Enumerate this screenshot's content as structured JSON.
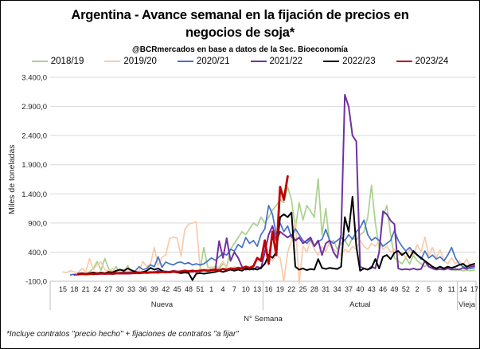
{
  "footnote": "*Incluye contratos \"precio hecho\" + fijaciones de contratos \"a fijar\"",
  "chart_data": {
    "type": "line",
    "title": "Argentina - Avance semanal en la fijación de precios en negocios de soja*",
    "subtitle": "@BCRmercados en base a datos de la Sec. Bioeconomía",
    "ylabel": "Miles de toneladas",
    "xlabel": "N° Semana",
    "ylim": [
      -100,
      3400
    ],
    "yticks": [
      3400,
      2900,
      2400,
      1900,
      1400,
      900,
      400,
      -100
    ],
    "ytick_labels": [
      "3.400,0",
      "2.900,0",
      "2.400,0",
      "1.900,0",
      "1.400,0",
      "900,0",
      "400,0",
      "-100,0"
    ],
    "x_tick_labels": [
      "15",
      "18",
      "21",
      "24",
      "27",
      "30",
      "33",
      "36",
      "39",
      "42",
      "45",
      "48",
      "51",
      "1",
      "4",
      "7",
      "10",
      "13",
      "16",
      "19",
      "22",
      "25",
      "28",
      "31",
      "34",
      "37",
      "40",
      "43",
      "46",
      "49",
      "52",
      "2",
      "5",
      "8",
      "11",
      "14",
      "17"
    ],
    "x_tick_every": 3,
    "sections": [
      {
        "label": "Nueva",
        "start": 0,
        "end": 52
      },
      {
        "label": "Actual",
        "start": 53,
        "end": 103
      },
      {
        "label": "Vieja",
        "start": 104,
        "end": 108
      }
    ],
    "grid": true,
    "legend_position": "top",
    "series": [
      {
        "name": "2018/19",
        "color": "#A9D18E",
        "width": 1.7,
        "values": [
          null,
          null,
          null,
          null,
          null,
          null,
          20,
          60,
          120,
          240,
          90,
          290,
          120,
          60,
          150,
          40,
          30,
          170,
          40,
          30,
          40,
          50,
          40,
          60,
          50,
          40,
          60,
          50,
          70,
          60,
          50,
          70,
          60,
          50,
          60,
          80,
          100,
          480,
          150,
          100,
          160,
          120,
          200,
          150,
          450,
          550,
          650,
          750,
          700,
          800,
          900,
          850,
          1000,
          900,
          1000,
          1120,
          1200,
          1300,
          1250,
          1520,
          1300,
          800,
          1250,
          950,
          1200,
          1100,
          1000,
          1660,
          700,
          1150,
          550,
          600,
          450,
          550,
          600,
          500,
          650,
          600,
          700,
          750,
          1000,
          1550,
          900,
          480,
          1000,
          1200,
          700,
          300,
          250,
          200,
          300,
          200,
          350,
          250,
          200,
          150,
          200,
          150,
          120,
          150,
          100,
          120,
          100,
          90,
          100,
          80,
          90,
          80,
          90
        ]
      },
      {
        "name": "2019/20",
        "color": "#F8CBAD",
        "width": 1.7,
        "values": [
          60,
          50,
          80,
          60,
          50,
          120,
          60,
          290,
          100,
          190,
          230,
          100,
          80,
          120,
          60,
          80,
          100,
          70,
          90,
          60,
          80,
          240,
          150,
          200,
          480,
          170,
          310,
          350,
          630,
          660,
          640,
          330,
          790,
          880,
          900,
          920,
          130,
          100,
          120,
          150,
          100,
          150,
          250,
          120,
          100,
          150,
          100,
          120,
          90,
          110,
          100,
          120,
          150,
          200,
          300,
          250,
          350,
          300,
          -100,
          400,
          600,
          950,
          -140,
          500,
          400,
          600,
          450,
          350,
          500,
          400,
          600,
          450,
          400,
          350,
          450,
          400,
          500,
          450,
          600,
          500,
          450,
          550,
          500,
          600,
          450,
          500,
          400,
          450,
          350,
          400,
          300,
          450,
          350,
          530,
          400,
          660,
          350,
          480,
          300,
          440,
          250,
          200,
          300,
          200,
          250,
          180,
          280,
          150,
          180
        ]
      },
      {
        "name": "2020/21",
        "color": "#4472C4",
        "width": 1.7,
        "values": [
          null,
          null,
          10,
          20,
          15,
          20,
          15,
          25,
          20,
          30,
          25,
          30,
          25,
          30,
          40,
          50,
          60,
          50,
          60,
          80,
          150,
          100,
          120,
          180,
          150,
          320,
          140,
          230,
          200,
          180,
          220,
          230,
          200,
          220,
          180,
          200,
          180,
          200,
          250,
          300,
          260,
          320,
          380,
          350,
          450,
          420,
          530,
          480,
          650,
          550,
          600,
          500,
          700,
          800,
          1200,
          1050,
          700,
          900,
          750,
          850,
          650,
          800,
          700,
          600,
          550,
          620,
          500,
          580,
          620,
          790,
          600,
          550,
          600,
          650,
          600,
          700,
          620,
          750,
          820,
          950,
          700,
          600,
          650,
          600,
          500,
          550,
          600,
          770,
          600,
          500,
          420,
          480,
          400,
          350,
          280,
          420,
          300,
          350,
          280,
          320,
          250,
          350,
          480,
          300,
          200,
          150,
          130,
          120,
          130
        ]
      },
      {
        "name": "2021/22",
        "color": "#7030A0",
        "width": 2,
        "values": [
          null,
          null,
          null,
          10,
          15,
          20,
          15,
          20,
          25,
          20,
          30,
          25,
          30,
          25,
          30,
          40,
          30,
          40,
          35,
          40,
          40,
          40,
          50,
          60,
          50,
          80,
          60,
          70,
          60,
          80,
          70,
          60,
          80,
          70,
          60,
          80,
          70,
          90,
          80,
          100,
          90,
          590,
          300,
          640,
          250,
          400,
          300,
          150,
          100,
          120,
          100,
          150,
          120,
          400,
          700,
          850,
          600,
          750,
          700,
          650,
          700,
          600,
          650,
          550,
          600,
          650,
          500,
          600,
          350,
          550,
          600,
          400,
          300,
          700,
          3100,
          2900,
          2400,
          2300,
          150,
          120,
          100,
          150,
          120,
          400,
          1100,
          1050,
          940,
          880,
          120,
          100,
          110,
          100,
          120,
          100,
          110,
          250,
          150,
          120,
          100,
          110,
          100,
          120,
          100,
          110,
          100,
          130,
          110,
          150,
          160
        ]
      },
      {
        "name": "2022/23",
        "color": "#000000",
        "width": 2,
        "values": [
          null,
          null,
          null,
          null,
          30,
          40,
          30,
          40,
          50,
          40,
          50,
          40,
          60,
          50,
          80,
          100,
          80,
          120,
          90,
          60,
          50,
          60,
          80,
          130,
          100,
          120,
          80,
          60,
          50,
          60,
          50,
          40,
          50,
          40,
          -80,
          30,
          40,
          30,
          40,
          50,
          60,
          80,
          60,
          80,
          100,
          80,
          100,
          80,
          120,
          100,
          120,
          100,
          130,
          200,
          350,
          300,
          400,
          1000,
          1050,
          1000,
          1080,
          150,
          100,
          120,
          90,
          110,
          100,
          280,
          130,
          110,
          130,
          120,
          110,
          150,
          1000,
          750,
          1350,
          500,
          80,
          120,
          100,
          130,
          280,
          120,
          320,
          350,
          280,
          390,
          420,
          350,
          400,
          300,
          420,
          350,
          300,
          250,
          200,
          150,
          120,
          150,
          120,
          150,
          130,
          150,
          180,
          200,
          150,
          180,
          200
        ]
      },
      {
        "name": "2023/24",
        "color": "#C00000",
        "width": 2.8,
        "values": [
          null,
          null,
          null,
          null,
          20,
          30,
          25,
          30,
          25,
          30,
          35,
          30,
          35,
          30,
          40,
          35,
          40,
          35,
          40,
          45,
          40,
          50,
          45,
          50,
          55,
          50,
          60,
          55,
          60,
          70,
          60,
          70,
          80,
          70,
          80,
          70,
          80,
          90,
          80,
          90,
          100,
          90,
          110,
          100,
          120,
          110,
          130,
          120,
          150,
          130,
          160,
          300,
          250,
          600,
          200,
          750,
          350,
          1520,
          1300,
          1700,
          null,
          null,
          null,
          null,
          null,
          null,
          null,
          null,
          null,
          null,
          null,
          null,
          null,
          null,
          null,
          null,
          null,
          null,
          null,
          null,
          null,
          null,
          null,
          null,
          null,
          null,
          null,
          null,
          null,
          null,
          null,
          null,
          null,
          null,
          null,
          null,
          null,
          null,
          null,
          null,
          null,
          null,
          null,
          null,
          null,
          null,
          null,
          null,
          null
        ]
      }
    ]
  }
}
